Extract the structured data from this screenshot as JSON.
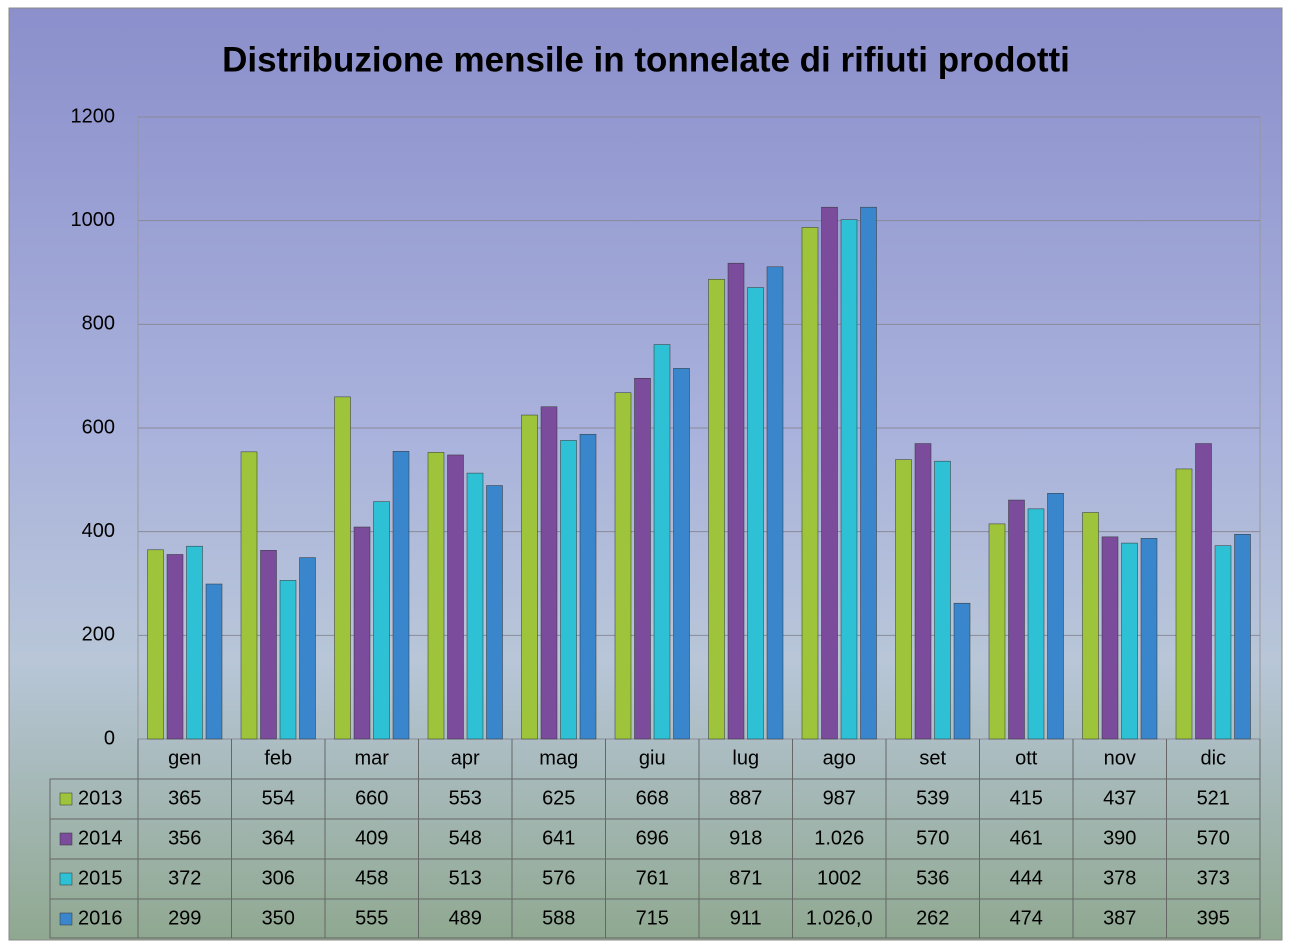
{
  "chart_data": {
    "type": "bar",
    "title": "Distribuzione mensile in tonnelate di rifiuti prodotti",
    "categories": [
      "gen",
      "feb",
      "mar",
      "apr",
      "mag",
      "giu",
      "lug",
      "ago",
      "set",
      "ott",
      "nov",
      "dic"
    ],
    "series": [
      {
        "name": "2013",
        "color": "#9dc43a",
        "values": [
          365,
          554,
          660,
          553,
          625,
          668,
          887,
          987,
          539,
          415,
          437,
          521
        ]
      },
      {
        "name": "2014",
        "color": "#7b4c9c",
        "values": [
          356,
          364,
          409,
          548,
          641,
          696,
          918,
          1026,
          570,
          461,
          390,
          570
        ],
        "value_labels": [
          "356",
          "364",
          "409",
          "548",
          "641",
          "696",
          "918",
          "1.026",
          "570",
          "461",
          "390",
          "570"
        ]
      },
      {
        "name": "2015",
        "color": "#2ec0d4",
        "values": [
          372,
          306,
          458,
          513,
          576,
          761,
          871,
          1002,
          536,
          444,
          378,
          373
        ]
      },
      {
        "name": "2016",
        "color": "#3a86cc",
        "values": [
          299,
          350,
          555,
          489,
          588,
          715,
          911,
          1026,
          262,
          474,
          387,
          395
        ],
        "value_labels": [
          "299",
          "350",
          "555",
          "489",
          "588",
          "715",
          "911",
          "1.026,0",
          "262",
          "474",
          "387",
          "395"
        ]
      }
    ],
    "ylim": [
      0,
      1200
    ],
    "yticks": [
      0,
      200,
      400,
      600,
      800,
      1000,
      1200
    ],
    "grid": true
  }
}
